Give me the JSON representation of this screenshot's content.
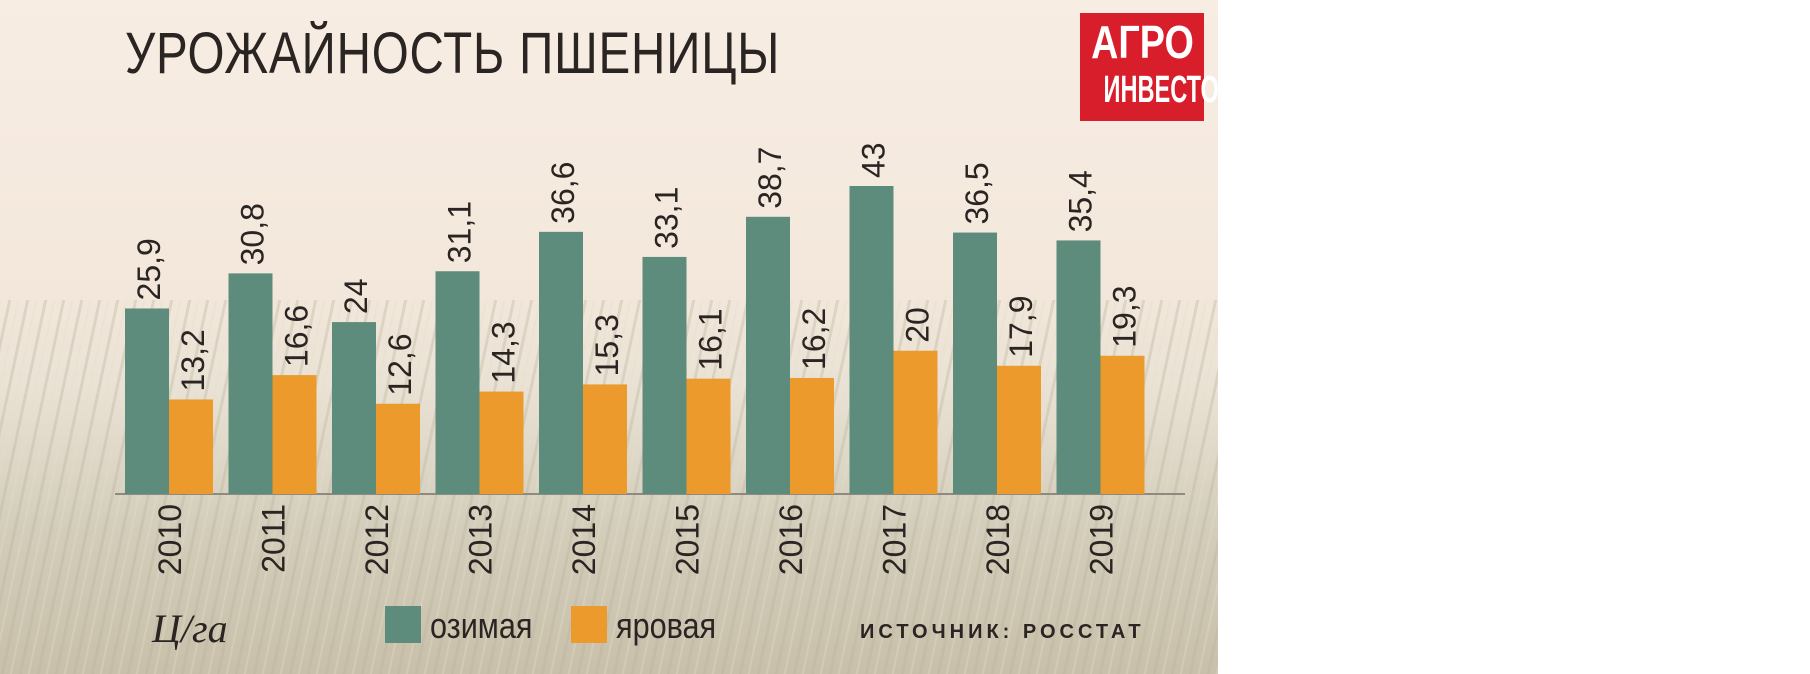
{
  "title": "УРОЖАЙНОСТЬ ПШЕНИЦЫ",
  "logo": {
    "line1": "АГРО",
    "line2": "ИНВЕСТОР"
  },
  "unit": "Ц/га",
  "source": "ИСТОЧНИК: РОССТАТ",
  "colors": {
    "winter": "#5e8c7c",
    "spring": "#ec9a2c",
    "title": "#2a2422",
    "logo": "#d81e2b"
  },
  "chart_data": {
    "type": "bar",
    "title": "УРОЖАЙНОСТЬ ПШЕНИЦЫ",
    "ylabel": "Ц/га",
    "xlabel": "",
    "ylim": [
      0,
      43
    ],
    "grid": false,
    "legend": "bottom",
    "categories": [
      "2010",
      "2011",
      "2012",
      "2013",
      "2014",
      "2015",
      "2016",
      "2017",
      "2018",
      "2019"
    ],
    "series": [
      {
        "name": "озимая",
        "values": [
          25.9,
          30.8,
          24,
          31.1,
          36.6,
          33.1,
          38.7,
          43,
          36.5,
          35.4
        ],
        "labels": [
          "25,9",
          "30,8",
          "24",
          "31,1",
          "36,6",
          "33,1",
          "38,7",
          "43",
          "36,5",
          "35,4"
        ]
      },
      {
        "name": "яровая",
        "values": [
          13.2,
          16.6,
          12.6,
          14.3,
          15.3,
          16.1,
          16.2,
          20,
          17.9,
          19.3
        ],
        "labels": [
          "13,2",
          "16,6",
          "12,6",
          "14,3",
          "15,3",
          "16,1",
          "16,2",
          "20",
          "17,9",
          "19,3"
        ]
      }
    ]
  }
}
